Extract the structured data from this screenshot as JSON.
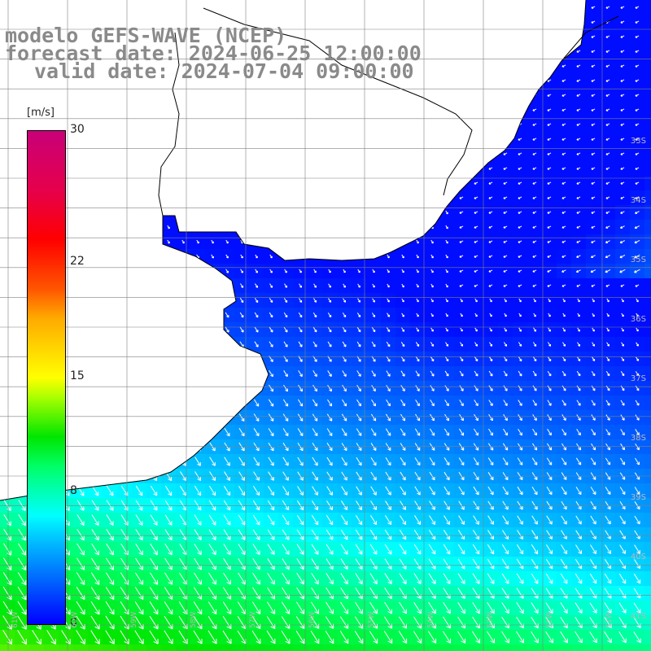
{
  "title": {
    "line1": "modelo GEFS-WAVE (NCEP)",
    "line2": "forecast date: 2024-06-25 12:00:00",
    "line3": "valid date: 2024-07-04 09:00:00"
  },
  "colorbar": {
    "unit": "[m/s]",
    "ticks": [
      {
        "label": "30",
        "value": 30
      },
      {
        "label": "22",
        "value": 22
      },
      {
        "label": "15",
        "value": 15
      },
      {
        "label": "8",
        "value": 8
      },
      {
        "label": "0",
        "value": 0
      }
    ],
    "colors": [
      "#0000ff",
      "#00ffff",
      "#00ff00",
      "#ffff00",
      "#ff0000",
      "#c80078"
    ]
  },
  "map": {
    "field": "wind speed",
    "lat_labels": [
      "33S",
      "34S",
      "35S",
      "36S",
      "37S",
      "38S",
      "39S",
      "40S",
      "41S"
    ],
    "lon_labels": [
      "61W",
      "60W",
      "59W",
      "58W",
      "57W",
      "56W",
      "55W",
      "54W",
      "53W",
      "52W",
      "51W"
    ],
    "land_color": "#ffffff",
    "coast_color": "#000000",
    "grid_color": "#808080",
    "arrow_color": "#ffffff"
  }
}
